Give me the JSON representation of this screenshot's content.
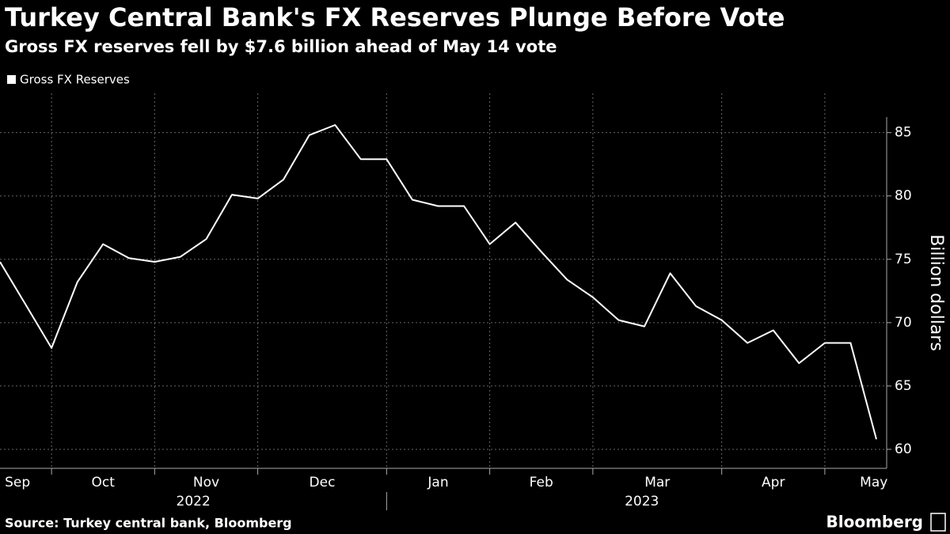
{
  "chart_data": {
    "type": "line",
    "title": "Turkey Central Bank's FX Reserves Plunge Before Vote",
    "subtitle": "Gross FX reserves fell by $7.6 billion ahead of May 14 vote",
    "y_label": "Billion dollars",
    "source": "Source: Turkey central bank, Bloomberg",
    "brand": "Bloomberg",
    "categories": [
      null,
      null,
      null,
      null,
      null,
      null,
      null,
      null,
      null,
      null,
      null,
      null,
      null,
      null,
      null,
      null,
      null,
      null,
      null,
      null,
      null,
      null,
      null,
      null,
      null,
      null,
      null,
      null,
      null,
      null,
      null,
      null,
      null,
      null,
      null
    ],
    "series": [
      {
        "name": "Gross FX Reserves",
        "color": "#ffffff",
        "values": [
          74.8,
          71.4,
          68.0,
          73.2,
          76.2,
          75.1,
          74.8,
          75.2,
          76.6,
          80.1,
          79.8,
          81.3,
          84.8,
          85.6,
          82.9,
          82.9,
          79.7,
          79.2,
          79.2,
          76.2,
          77.9,
          75.6,
          73.4,
          72.0,
          70.2,
          69.7,
          73.9,
          71.3,
          70.2,
          68.4,
          69.4,
          66.8,
          68.4,
          68.4,
          60.8
        ]
      }
    ],
    "month_labels": [
      {
        "value": 0.68,
        "label": "Sep"
      },
      {
        "value": 4.0,
        "label": "Oct"
      },
      {
        "value": 8.0,
        "label": "Nov"
      },
      {
        "value": 12.5,
        "label": "Dec"
      },
      {
        "value": 17.0,
        "label": "Jan"
      },
      {
        "value": 21.0,
        "label": "Feb"
      },
      {
        "value": 25.5,
        "label": "Mar"
      },
      {
        "value": 30.0,
        "label": "Apr"
      },
      {
        "value": 33.9,
        "label": "May"
      }
    ],
    "year_labels": [
      {
        "value": 7.5,
        "label": "2022"
      },
      {
        "value": 24.9,
        "label": "2023"
      }
    ],
    "xticks": [
      2,
      6,
      10,
      15,
      19,
      23,
      28,
      32
    ],
    "ylim": [
      58.5,
      88.1
    ],
    "yticks": [
      60,
      65,
      70,
      75,
      80,
      85
    ],
    "grid": true,
    "legend": "top-left"
  }
}
